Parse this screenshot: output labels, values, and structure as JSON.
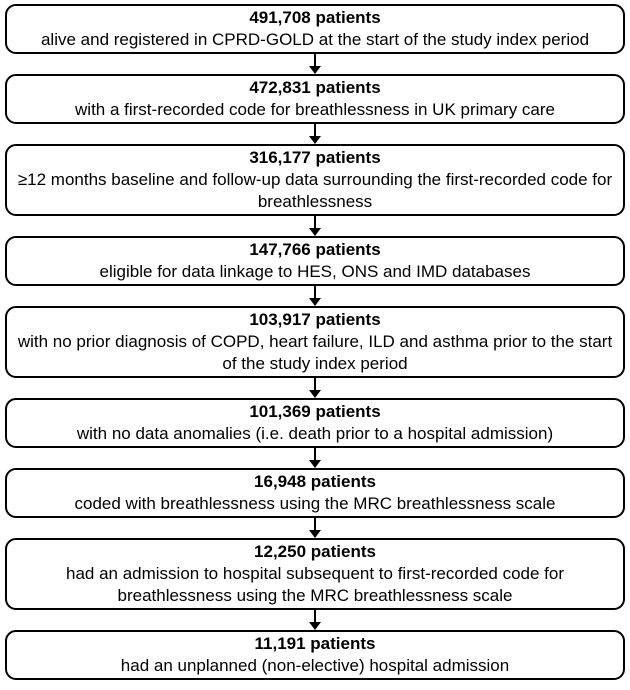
{
  "figure": {
    "kind": "patient-flow-diagram"
  },
  "colors": {
    "border": "#000000",
    "text": "#000000",
    "background": "#ffffff",
    "arrow": "#000000"
  },
  "boxes": [
    {
      "count": "491,708 patients",
      "description": "alive and registered in CPRD-GOLD at the start of the study index period"
    },
    {
      "count": "472,831 patients",
      "description": "with a first-recorded code for breathlessness in UK primary care"
    },
    {
      "count": "316,177 patients",
      "description": "≥12 months baseline and follow-up data surrounding the first-recorded code for breathlessness"
    },
    {
      "count": "147,766 patients",
      "description": "eligible for data linkage to HES, ONS and IMD databases"
    },
    {
      "count": "103,917 patients",
      "description": "with no prior diagnosis of COPD, heart failure, ILD and asthma prior to the start of the study index period"
    },
    {
      "count": "101,369 patients",
      "description": "with no data anomalies (i.e. death prior to a hospital admission)"
    },
    {
      "count": "16,948 patients",
      "description": "coded with breathlessness using the MRC breathlessness scale"
    },
    {
      "count": "12,250 patients",
      "description": "had an admission to hospital subsequent to first-recorded code for breathlessness using the MRC breathlessness scale"
    },
    {
      "count": "11,191 patients",
      "description": "had an unplanned (non-elective) hospital admission"
    }
  ]
}
